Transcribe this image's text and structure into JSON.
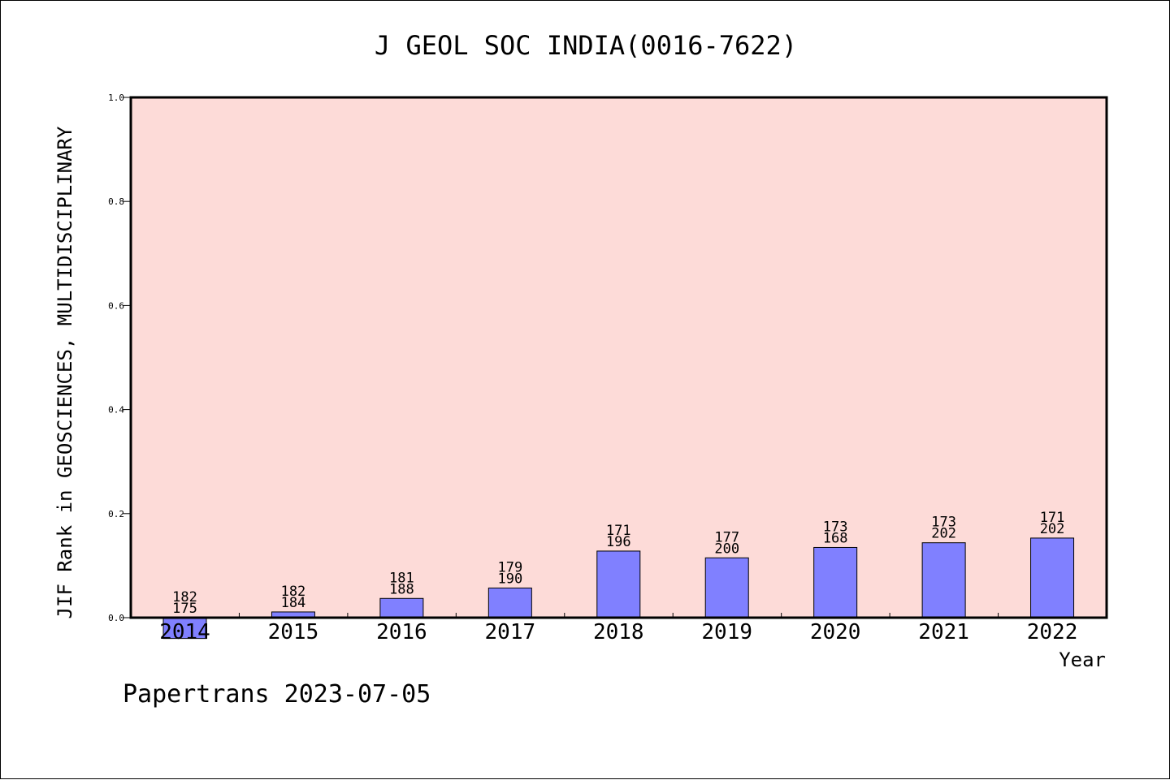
{
  "chart_data": {
    "type": "bar",
    "title": "J GEOL SOC INDIA(0016-7622)",
    "xlabel": "Year",
    "ylabel": "JIF Rank in GEOSCIENCES, MULTIDISCIPLINARY",
    "ylim": [
      0.0,
      1.0
    ],
    "yticks": [
      "0.0",
      "0.2",
      "0.4",
      "0.6",
      "0.8",
      "1.0"
    ],
    "categories": [
      "2014",
      "2015",
      "2016",
      "2017",
      "2018",
      "2019",
      "2020",
      "2021",
      "2022"
    ],
    "values": [
      -0.04,
      0.011,
      0.037,
      0.057,
      0.128,
      0.115,
      0.135,
      0.144,
      0.153
    ],
    "labels_top": [
      "182",
      "182",
      "181",
      "179",
      "171",
      "177",
      "173",
      "173",
      "171"
    ],
    "labels_bottom": [
      "175",
      "184",
      "188",
      "190",
      "196",
      "200",
      "168",
      "202",
      "202"
    ],
    "grid": false,
    "colors": {
      "plot_bg": "#fddbd8",
      "bar": "#8080ff",
      "frame": "#000000"
    }
  },
  "footer": {
    "text": "Papertrans 2023-07-05"
  }
}
